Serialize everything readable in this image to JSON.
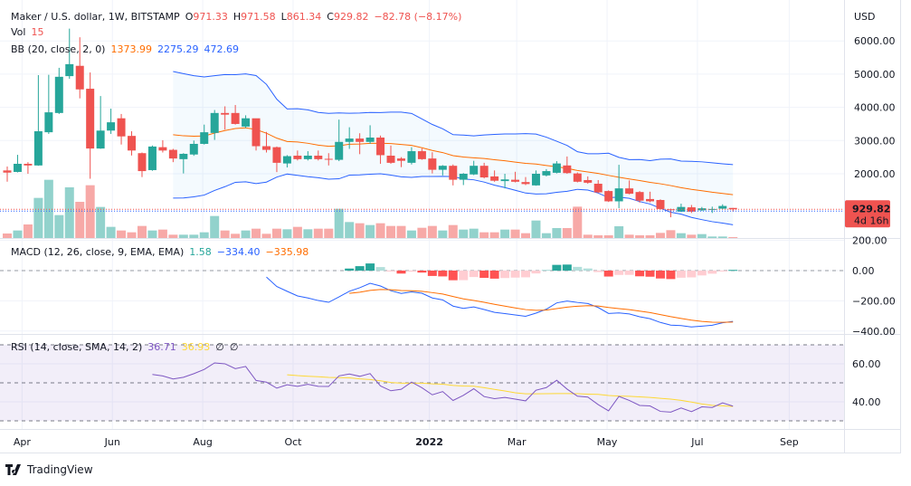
{
  "header": {
    "symbol": "Maker / U.S. dollar, 1W, BITSTAMP",
    "o_label": "O",
    "o": "971.33",
    "h_label": "H",
    "h": "971.58",
    "l_label": "L",
    "l": "861.34",
    "c_label": "C",
    "c": "929.82",
    "change": "−82.78 (−8.17%)"
  },
  "vol_legend": {
    "label": "Vol",
    "value": "15"
  },
  "bb_legend": {
    "label": "BB (20, close, 2, 0)",
    "basis": "1373.99",
    "upper": "2275.29",
    "lower": "472.69"
  },
  "macd_legend": {
    "label": "MACD (12, 26, close, 9, EMA, EMA)",
    "hist": "1.58",
    "macd": "−334.40",
    "signal": "−335.98"
  },
  "rsi_legend": {
    "label": "RSI (14, close, SMA, 14, 2)",
    "rsi": "36.71",
    "sma": "36.93",
    "v3": "∅",
    "v4": "∅"
  },
  "price_axis": {
    "currency": "USD",
    "ticks": [
      "6000.00",
      "5000.00",
      "4000.00",
      "3000.00",
      "2000.00"
    ],
    "tick_values": [
      6000,
      5000,
      4000,
      3000,
      2000
    ],
    "last_price": "929.82",
    "countdown": "4d 16h"
  },
  "macd_axis": {
    "ticks": [
      "200.00",
      "0.00",
      "−200.00",
      "−400.00"
    ],
    "tick_values": [
      200,
      0,
      -200,
      -400
    ]
  },
  "rsi_axis": {
    "ticks": [
      "60.00",
      "40.00"
    ],
    "tick_values": [
      60,
      40
    ],
    "bands": [
      70,
      50,
      30
    ]
  },
  "time_axis": [
    {
      "label": "Apr",
      "date": "2021-04-01"
    },
    {
      "label": "Jun",
      "date": "2021-06-01"
    },
    {
      "label": "Aug",
      "date": "2021-08-01"
    },
    {
      "label": "Oct",
      "date": "2021-10-01"
    },
    {
      "label": "2022",
      "date": "2022-01-01"
    },
    {
      "label": "Mar",
      "date": "2022-03-01"
    },
    {
      "label": "May",
      "date": "2022-05-01"
    },
    {
      "label": "Jul",
      "date": "2022-07-01"
    },
    {
      "label": "Sep",
      "date": "2022-09-01"
    }
  ],
  "colors": {
    "up": "#26a69a",
    "down": "#ef5350",
    "vol_up": "#92d2cc",
    "vol_down": "#f7a9a7",
    "bb_basis": "#ff6d00",
    "bb_band": "#2962ff",
    "macd": "#2962ff",
    "signal": "#ff6d00",
    "rsi": "#7e57c2",
    "rsi_sma": "#fdd835"
  },
  "candles_format": [
    "date",
    "open",
    "high",
    "low",
    "close",
    "volume"
  ],
  "candles": [
    [
      "2021-03-22",
      2100,
      2218,
      1763,
      2035,
      75
    ],
    [
      "2021-03-29",
      2055,
      2570,
      2040,
      2300,
      125
    ],
    [
      "2021-04-05",
      2300,
      2350,
      2000,
      2250,
      225
    ],
    [
      "2021-04-12",
      2250,
      4970,
      2240,
      3280,
      665
    ],
    [
      "2021-04-19",
      3250,
      4980,
      3200,
      3850,
      965
    ],
    [
      "2021-04-26",
      3830,
      5190,
      3800,
      4920,
      380
    ],
    [
      "2021-05-03",
      4940,
      6370,
      4860,
      5300,
      840
    ],
    [
      "2021-05-10",
      5250,
      6110,
      4270,
      4540,
      600
    ],
    [
      "2021-05-17",
      4560,
      5050,
      1850,
      2760,
      875
    ],
    [
      "2021-05-24",
      2760,
      4340,
      2750,
      3300,
      515
    ],
    [
      "2021-05-31",
      3300,
      3960,
      3200,
      3550,
      185
    ],
    [
      "2021-06-07",
      3670,
      3800,
      2880,
      3125,
      125
    ],
    [
      "2021-06-14",
      3140,
      3280,
      2550,
      2700,
      95
    ],
    [
      "2021-06-21",
      2620,
      2640,
      1900,
      2080,
      200
    ],
    [
      "2021-06-28",
      2110,
      2850,
      2090,
      2820,
      125
    ],
    [
      "2021-07-05",
      2800,
      3010,
      2640,
      2700,
      140
    ],
    [
      "2021-07-12",
      2720,
      2750,
      2350,
      2460,
      55
    ],
    [
      "2021-07-19",
      2440,
      2620,
      2010,
      2600,
      55
    ],
    [
      "2021-07-26",
      2580,
      3000,
      2540,
      2900,
      55
    ],
    [
      "2021-08-02",
      2900,
      3480,
      2880,
      3250,
      95
    ],
    [
      "2021-08-09",
      3230,
      3920,
      3020,
      3830,
      365
    ],
    [
      "2021-08-16",
      3830,
      4030,
      3330,
      3780,
      125
    ],
    [
      "2021-08-23",
      3830,
      4070,
      3480,
      3500,
      70
    ],
    [
      "2021-08-30",
      3420,
      3760,
      3380,
      3670,
      125
    ],
    [
      "2021-09-06",
      3670,
      3650,
      2700,
      2830,
      155
    ],
    [
      "2021-09-13",
      2830,
      3260,
      2640,
      2720,
      70
    ],
    [
      "2021-09-20",
      2800,
      2820,
      2050,
      2330,
      155
    ],
    [
      "2021-09-27",
      2310,
      2560,
      2190,
      2530,
      145
    ],
    [
      "2021-10-04",
      2545,
      2700,
      2400,
      2440,
      185
    ],
    [
      "2021-10-11",
      2440,
      2680,
      2400,
      2545,
      145
    ],
    [
      "2021-10-18",
      2545,
      2700,
      2400,
      2440,
      155
    ],
    [
      "2021-10-25",
      2450,
      2620,
      2250,
      2430,
      155
    ],
    [
      "2021-11-01",
      2420,
      3630,
      2380,
      2960,
      485
    ],
    [
      "2021-11-08",
      2960,
      3400,
      2750,
      3060,
      265
    ],
    [
      "2021-11-15",
      3060,
      3220,
      2590,
      2960,
      245
    ],
    [
      "2021-11-22",
      2960,
      3460,
      2900,
      3090,
      215
    ],
    [
      "2021-11-29",
      3090,
      3150,
      2300,
      2560,
      245
    ],
    [
      "2021-12-06",
      2545,
      2850,
      2300,
      2330,
      200
    ],
    [
      "2021-12-13",
      2460,
      2500,
      2200,
      2390,
      200
    ],
    [
      "2021-12-20",
      2330,
      2800,
      2280,
      2680,
      125
    ],
    [
      "2021-12-27",
      2680,
      2760,
      2420,
      2440,
      170
    ],
    [
      "2022-01-03",
      2460,
      2650,
      2010,
      2120,
      200
    ],
    [
      "2022-01-10",
      2120,
      2260,
      1950,
      2240,
      125
    ],
    [
      "2022-01-17",
      2240,
      2280,
      1650,
      1820,
      215
    ],
    [
      "2022-01-24",
      1820,
      2020,
      1660,
      2000,
      140
    ],
    [
      "2022-01-31",
      1980,
      2390,
      1960,
      2240,
      155
    ],
    [
      "2022-02-07",
      2240,
      2330,
      1860,
      1890,
      95
    ],
    [
      "2022-02-14",
      1920,
      2100,
      1760,
      1790,
      95
    ],
    [
      "2022-02-21",
      1780,
      2000,
      1560,
      1830,
      140
    ],
    [
      "2022-02-28",
      1820,
      2060,
      1740,
      1760,
      140
    ],
    [
      "2022-03-07",
      1750,
      1900,
      1660,
      1690,
      80
    ],
    [
      "2022-03-14",
      1650,
      2100,
      1640,
      2000,
      290
    ],
    [
      "2022-03-21",
      1950,
      2140,
      1920,
      2080,
      80
    ],
    [
      "2022-03-28",
      2030,
      2380,
      2010,
      2310,
      165
    ],
    [
      "2022-04-04",
      2250,
      2520,
      2000,
      2020,
      165
    ],
    [
      "2022-04-11",
      2010,
      2040,
      1740,
      1760,
      520
    ],
    [
      "2022-04-18",
      1810,
      1920,
      1700,
      1730,
      55
    ],
    [
      "2022-04-25",
      1700,
      1810,
      1420,
      1440,
      45
    ],
    [
      "2022-05-02",
      1480,
      1500,
      1150,
      1170,
      45
    ],
    [
      "2022-05-09",
      1170,
      2270,
      965,
      1560,
      195
    ],
    [
      "2022-05-16",
      1560,
      1800,
      1380,
      1400,
      55
    ],
    [
      "2022-05-23",
      1450,
      1480,
      1130,
      1190,
      45
    ],
    [
      "2022-05-30",
      1240,
      1460,
      1140,
      1170,
      45
    ],
    [
      "2022-06-06",
      1210,
      1230,
      920,
      940,
      85
    ],
    [
      "2022-06-13",
      930,
      950,
      690,
      910,
      130
    ],
    [
      "2022-06-20",
      860,
      1100,
      850,
      1000,
      80
    ],
    [
      "2022-06-27",
      990,
      1060,
      820,
      860,
      55
    ],
    [
      "2022-07-04",
      900,
      1000,
      880,
      960,
      65
    ],
    [
      "2022-07-11",
      920,
      1010,
      820,
      940,
      25
    ],
    [
      "2022-07-18",
      950,
      1080,
      930,
      1030,
      25
    ],
    [
      "2022-07-25",
      971.33,
      971.58,
      861.34,
      929.82,
      15
    ]
  ],
  "branding": {
    "name": "TradingView"
  }
}
